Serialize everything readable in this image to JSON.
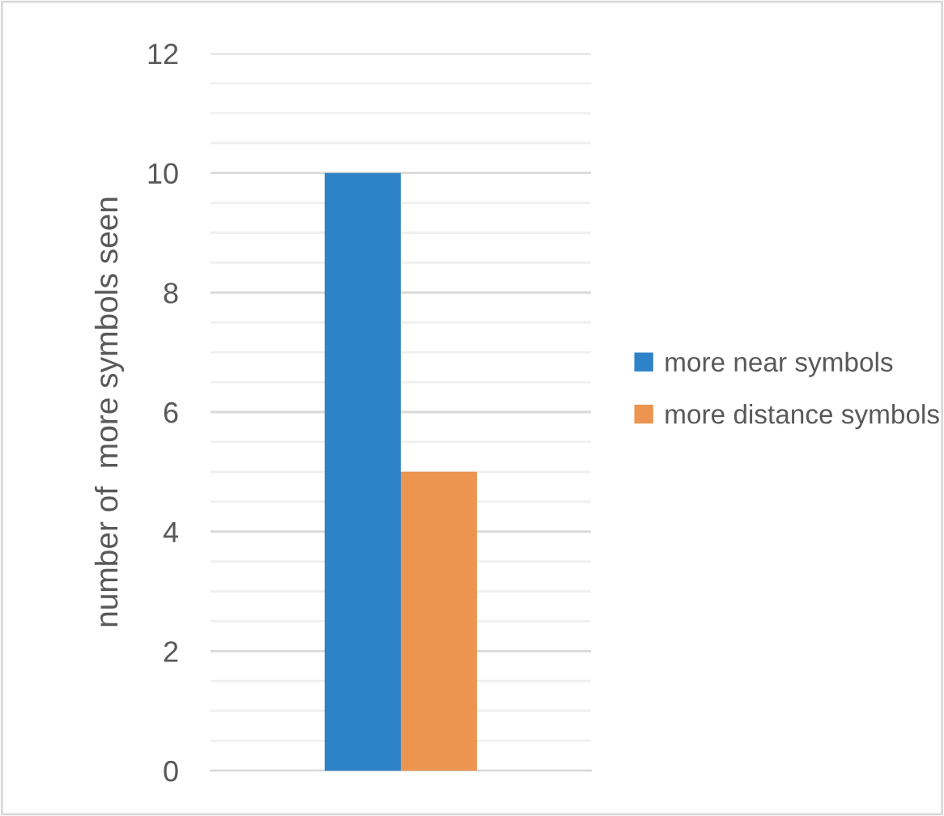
{
  "chart_data": {
    "type": "bar",
    "ylabel": "number of  more symbols seen",
    "categories": [
      null
    ],
    "series": [
      {
        "name": "more near symbols",
        "color": "#2e83c8",
        "values": [
          10
        ]
      },
      {
        "name": "more distance symbols",
        "color": "#eb9550",
        "values": [
          5
        ]
      }
    ],
    "ylim": [
      0,
      12
    ],
    "yticks": [
      0,
      {
        "value": 0.5,
        "label": null
      },
      {
        "value": 1,
        "label": null
      },
      {
        "value": 1.5,
        "label": null
      },
      2,
      {
        "value": 2.5,
        "label": null
      },
      {
        "value": 3,
        "label": null
      },
      {
        "value": 3.5,
        "label": null
      },
      4,
      {
        "value": 4.5,
        "label": null
      },
      {
        "value": 5,
        "label": null
      },
      {
        "value": 5.5,
        "label": null
      },
      6,
      {
        "value": 6.5,
        "label": null
      },
      {
        "value": 7,
        "label": null
      },
      {
        "value": 7.5,
        "label": null
      },
      8,
      {
        "value": 8.5,
        "label": null
      },
      {
        "value": 9,
        "label": null
      },
      {
        "value": 9.5,
        "label": null
      },
      10,
      {
        "value": 10.5,
        "label": null
      },
      {
        "value": 11,
        "label": null
      },
      {
        "value": 11.5,
        "label": null
      },
      12
    ],
    "grid": "y",
    "legend": "right",
    "tick_labels": "y"
  }
}
